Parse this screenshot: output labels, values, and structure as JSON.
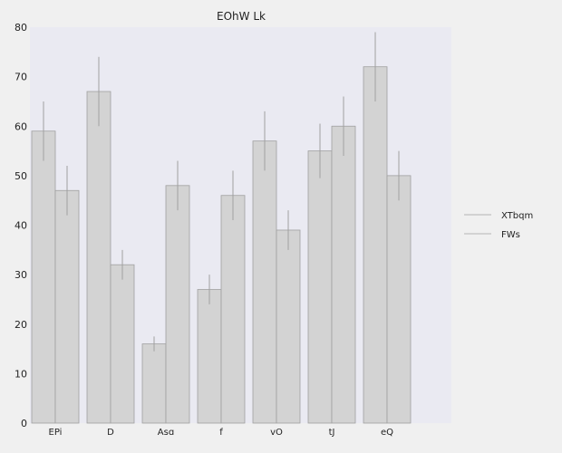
{
  "chart_data": {
    "type": "bar",
    "title": "EOhW Lk",
    "xlabel": "",
    "ylabel": "",
    "categories": [
      "EPi",
      "D",
      "Asɑ",
      "f",
      "vO",
      "tJ",
      "eQ"
    ],
    "ylim": [
      0,
      80
    ],
    "yticks": [
      0,
      10,
      20,
      30,
      40,
      50,
      60,
      70,
      80
    ],
    "grid": false,
    "legend_position": "right",
    "series": [
      {
        "name": "XTbqm",
        "values": [
          59,
          67,
          16,
          27,
          57,
          55,
          72
        ],
        "error": [
          6,
          7,
          1.5,
          3,
          6,
          5.5,
          7
        ],
        "color": "#d3d3d3"
      },
      {
        "name": "FWs",
        "values": [
          47,
          32,
          48,
          46,
          39,
          60,
          50
        ],
        "error": [
          5,
          3,
          5,
          5,
          4,
          6,
          5
        ],
        "color": "#d3d3d3"
      }
    ],
    "colors": {
      "plot_background": "#eaeaf2",
      "figure_background": "#f0f0f0",
      "bar_edge": "#a0a0a0",
      "error_bar": "#a0a0a0",
      "legend_line": "#c8c8c8"
    }
  }
}
